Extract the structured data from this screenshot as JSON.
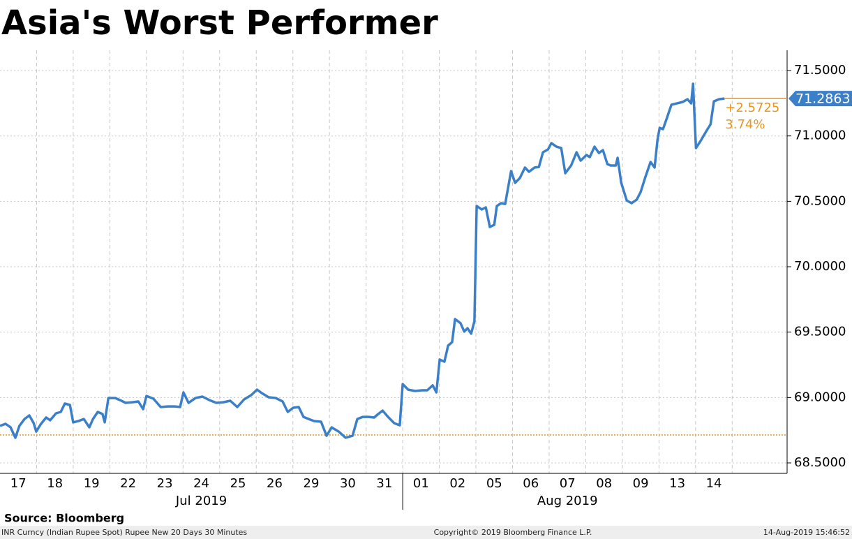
{
  "chart_data": {
    "type": "line",
    "title": "Asia's Worst Performer",
    "source": "Source: Bloomberg",
    "footer_left": "INR Curncy (Indian Rupee Spot) Rupee New 20 Days 30 Minutes",
    "footer_center": "Copyright© 2019 Bloomberg Finance L.P.",
    "footer_right": "14-Aug-2019 15:46:52",
    "categories": [
      "17",
      "18",
      "19",
      "22",
      "23",
      "24",
      "25",
      "26",
      "29",
      "30",
      "31",
      "01",
      "02",
      "05",
      "06",
      "07",
      "08",
      "09",
      "13",
      "14"
    ],
    "months": [
      {
        "label": "Jul 2019",
        "start": 0,
        "end": 11
      },
      {
        "label": "Aug 2019",
        "start": 11,
        "end": 20
      }
    ],
    "xlim": [
      0,
      21.5
    ],
    "ylim": [
      68.42,
      71.655
    ],
    "yticks": [
      {
        "value": 68.5,
        "label": "68.5000"
      },
      {
        "value": 69,
        "label": "69.0000"
      },
      {
        "value": 69.5,
        "label": "69.5000"
      },
      {
        "value": 70,
        "label": "70.0000"
      },
      {
        "value": 70.5,
        "label": "70.5000"
      },
      {
        "value": 71,
        "label": "71.0000"
      },
      {
        "value": 71.5,
        "label": "71.5000"
      }
    ],
    "grid": true,
    "last_value": 71.2863,
    "last_value_label": "71.2863",
    "baseline": 68.7138,
    "change_label": "+2.5725",
    "change_pct_label": "3.74%",
    "series": [
      {
        "name": "INR Curncy",
        "color": "#3a7fc8",
        "x": [
          0,
          0.15,
          0.29,
          0.42,
          0.53,
          0.67,
          0.8,
          0.92,
          0.99,
          1.11,
          1.26,
          1.37,
          1.53,
          1.66,
          1.77,
          1.91,
          2,
          2.14,
          2.29,
          2.44,
          2.54,
          2.67,
          2.8,
          2.86,
          2.96,
          3.15,
          3.28,
          3.43,
          3.62,
          3.78,
          3.91,
          4,
          4.19,
          4.39,
          4.58,
          4.77,
          4.92,
          5.01,
          5.15,
          5.34,
          5.53,
          5.72,
          5.91,
          6.1,
          6.29,
          6.48,
          6.67,
          6.86,
          7.02,
          7.15,
          7.34,
          7.53,
          7.72,
          7.86,
          8.01,
          8.16,
          8.29,
          8.43,
          8.58,
          8.77,
          8.92,
          9.06,
          9.25,
          9.44,
          9.63,
          9.76,
          9.91,
          10.07,
          10.22,
          10.33,
          10.45,
          10.6,
          10.77,
          10.92,
          11,
          11.15,
          11.34,
          11.53,
          11.67,
          11.82,
          11.92,
          12.01,
          12.14,
          12.24,
          12.35,
          12.43,
          12.58,
          12.68,
          12.77,
          12.87,
          12.96,
          13.02,
          13.16,
          13.27,
          13.38,
          13.5,
          13.57,
          13.69,
          13.8,
          13.96,
          14.07,
          14.2,
          14.34,
          14.45,
          14.6,
          14.72,
          14.83,
          14.97,
          15.06,
          15.2,
          15.33,
          15.44,
          15.6,
          15.75,
          15.86,
          16.02,
          16.11,
          16.24,
          16.36,
          16.47,
          16.59,
          16.68,
          16.82,
          16.87,
          16.97,
          17.12,
          17.25,
          17.39,
          17.5,
          17.62,
          17.77,
          17.88,
          17.96,
          18.02,
          18.11,
          18.21,
          18.34,
          18.49,
          18.65,
          18.78,
          18.88,
          18.93,
          19.01,
          19.16,
          19.29,
          19.41,
          19.5,
          19.64,
          19.79
        ],
        "values": [
          68.783,
          68.799,
          68.772,
          68.692,
          68.783,
          68.836,
          68.863,
          68.804,
          68.74,
          68.794,
          68.847,
          68.826,
          68.879,
          68.89,
          68.954,
          68.943,
          68.81,
          68.82,
          68.836,
          68.772,
          68.836,
          68.89,
          68.874,
          68.81,
          68.996,
          68.996,
          68.98,
          68.959,
          68.964,
          68.97,
          68.911,
          69.012,
          68.991,
          68.927,
          68.932,
          68.932,
          68.927,
          69.039,
          68.959,
          68.996,
          69.007,
          68.98,
          68.959,
          68.964,
          68.975,
          68.927,
          68.986,
          69.018,
          69.06,
          69.034,
          69.002,
          68.996,
          68.97,
          68.89,
          68.922,
          68.927,
          68.852,
          68.836,
          68.82,
          68.815,
          68.708,
          68.772,
          68.74,
          68.692,
          68.708,
          68.836,
          68.852,
          68.852,
          68.847,
          68.874,
          68.9,
          68.852,
          68.804,
          68.788,
          69.103,
          69.06,
          69.05,
          69.055,
          69.055,
          69.093,
          69.039,
          69.29,
          69.274,
          69.397,
          69.423,
          69.6,
          69.568,
          69.504,
          69.53,
          69.488,
          69.584,
          70.464,
          70.438,
          70.454,
          70.304,
          70.32,
          70.464,
          70.486,
          70.48,
          70.731,
          70.641,
          70.678,
          70.758,
          70.726,
          70.758,
          70.763,
          70.875,
          70.897,
          70.945,
          70.918,
          70.907,
          70.715,
          70.774,
          70.875,
          70.811,
          70.854,
          70.838,
          70.918,
          70.87,
          70.891,
          70.785,
          70.774,
          70.774,
          70.833,
          70.641,
          70.507,
          70.486,
          70.512,
          70.571,
          70.678,
          70.801,
          70.758,
          70.972,
          71.062,
          71.052,
          71.132,
          71.238,
          71.249,
          71.26,
          71.281,
          71.249,
          71.399,
          70.907,
          70.972,
          71.036,
          71.089,
          71.265,
          71.281,
          71.2863
        ]
      }
    ]
  }
}
